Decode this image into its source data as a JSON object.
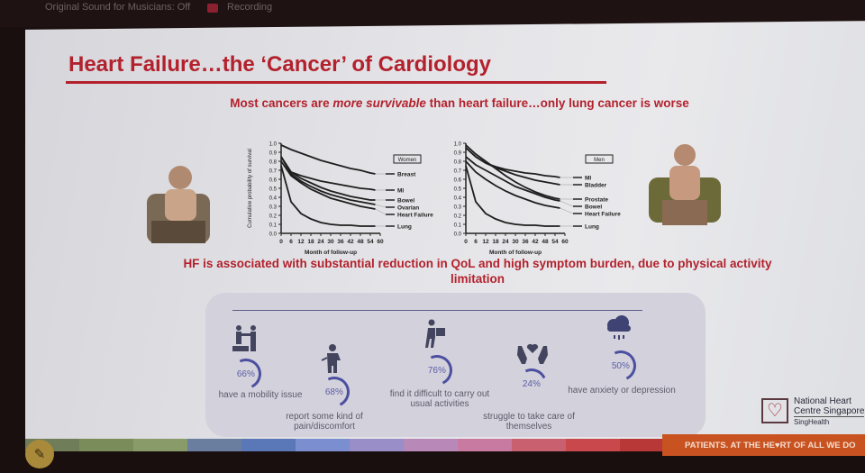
{
  "topbar": {
    "left": "Original Sound for Musicians: Off",
    "right": "Recording"
  },
  "slide": {
    "title": "Heart Failure…the ‘Cancer’ of Cardiology",
    "subtitle_pre": "Most cancers are ",
    "subtitle_em": "more survivable",
    "subtitle_post": " than heart failure…only lung cancer is worse",
    "statement": "HF is associated with substantial reduction in QoL and high symptom burden, due to physical activity limitation",
    "stats": [
      {
        "value": "66%",
        "label": "have a mobility issue",
        "icon": "mobility-assist-icon"
      },
      {
        "value": "68%",
        "label": "report some kind of pain/discomfort",
        "icon": "pain-person-icon"
      },
      {
        "value": "76%",
        "label": "find it difficult to carry out usual activities",
        "icon": "person-carrying-box-icon"
      },
      {
        "value": "24%",
        "label": "struggle to take care of themselves",
        "icon": "hands-heart-icon"
      },
      {
        "value": "50%",
        "label": "have anxiety or depression",
        "icon": "rain-cloud-icon"
      }
    ],
    "logo": {
      "line1": "National Heart",
      "line2": "Centre Singapore",
      "line3": "SingHealth"
    },
    "tagline": "PATIENTS. AT THE HE♥RT OF ALL WE DO",
    "pen_icon": "pen-icon"
  },
  "chart_data": [
    {
      "type": "line",
      "title": "Women",
      "xlabel": "Month of follow-up",
      "ylabel": "Cumulative probability of survival",
      "x": [
        0,
        6,
        12,
        18,
        24,
        30,
        36,
        42,
        48,
        54,
        57
      ],
      "xticks": [
        0,
        6,
        12,
        18,
        24,
        30,
        36,
        42,
        48,
        54,
        60
      ],
      "yticks": [
        "0.0",
        "0.1",
        "0.2",
        "0.3",
        "0.4",
        "0.5",
        "0.6",
        "0.7",
        "0.8",
        "0.9",
        "1.0"
      ],
      "xlim": [
        0,
        60
      ],
      "ylim": [
        0,
        1
      ],
      "series": [
        {
          "name": "Breast",
          "values": [
            0.98,
            0.93,
            0.89,
            0.85,
            0.81,
            0.78,
            0.75,
            0.72,
            0.7,
            0.67,
            0.66
          ]
        },
        {
          "name": "MI",
          "values": [
            0.85,
            0.68,
            0.64,
            0.61,
            0.58,
            0.56,
            0.54,
            0.52,
            0.5,
            0.49,
            0.48
          ]
        },
        {
          "name": "Bowel",
          "values": [
            0.85,
            0.68,
            0.61,
            0.56,
            0.51,
            0.47,
            0.44,
            0.41,
            0.39,
            0.37,
            0.37
          ]
        },
        {
          "name": "Ovarian",
          "values": [
            0.85,
            0.66,
            0.58,
            0.52,
            0.47,
            0.43,
            0.4,
            0.37,
            0.35,
            0.33,
            0.32
          ]
        },
        {
          "name": "Heart Failure",
          "values": [
            0.8,
            0.64,
            0.56,
            0.49,
            0.44,
            0.39,
            0.36,
            0.33,
            0.3,
            0.28,
            0.27
          ]
        },
        {
          "name": "Lung",
          "values": [
            0.75,
            0.35,
            0.22,
            0.16,
            0.12,
            0.1,
            0.09,
            0.09,
            0.08,
            0.08,
            0.08
          ]
        }
      ]
    },
    {
      "type": "line",
      "title": "Men",
      "xlabel": "Month of follow-up",
      "ylabel": "",
      "x": [
        0,
        6,
        12,
        18,
        24,
        30,
        36,
        42,
        48,
        54,
        57
      ],
      "xticks": [
        0,
        6,
        12,
        18,
        24,
        30,
        36,
        42,
        48,
        54,
        60
      ],
      "yticks": [
        "0.0",
        "0.1",
        "0.2",
        "0.3",
        "0.4",
        "0.5",
        "0.6",
        "0.7",
        "0.8",
        "0.9",
        "1.0"
      ],
      "xlim": [
        0,
        60
      ],
      "ylim": [
        0,
        1
      ],
      "series": [
        {
          "name": "MI",
          "values": [
            0.95,
            0.85,
            0.78,
            0.74,
            0.71,
            0.69,
            0.67,
            0.66,
            0.64,
            0.63,
            0.62
          ]
        },
        {
          "name": "Bladder",
          "values": [
            0.95,
            0.85,
            0.78,
            0.73,
            0.69,
            0.65,
            0.62,
            0.59,
            0.57,
            0.55,
            0.54
          ]
        },
        {
          "name": "Prostate",
          "values": [
            0.98,
            0.88,
            0.8,
            0.72,
            0.64,
            0.57,
            0.51,
            0.46,
            0.42,
            0.39,
            0.38
          ]
        },
        {
          "name": "Bowel",
          "values": [
            0.85,
            0.76,
            0.7,
            0.64,
            0.58,
            0.52,
            0.48,
            0.44,
            0.4,
            0.37,
            0.36
          ]
        },
        {
          "name": "Heart Failure",
          "values": [
            0.8,
            0.68,
            0.6,
            0.53,
            0.47,
            0.42,
            0.38,
            0.34,
            0.31,
            0.29,
            0.28
          ]
        },
        {
          "name": "Lung",
          "values": [
            0.75,
            0.35,
            0.22,
            0.16,
            0.12,
            0.1,
            0.09,
            0.09,
            0.08,
            0.08,
            0.08
          ]
        }
      ]
    }
  ],
  "colors": {
    "accent": "#b3212c",
    "ring": "#4b4fa0",
    "tagline_bg": "#c95320"
  }
}
